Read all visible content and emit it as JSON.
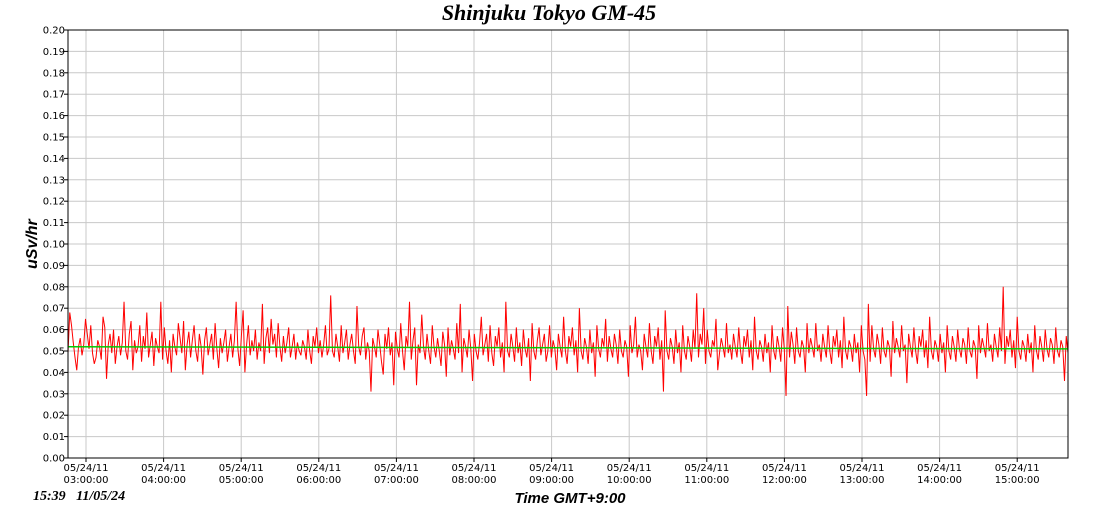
{
  "chart_data": {
    "type": "line",
    "title": "Shinjuku Tokyo GM-45",
    "ylabel": "uSv/hr",
    "xlabel": "Time GMT+9:00",
    "timestamp": "15:39   11/05/24",
    "ylim": [
      0,
      0.2
    ],
    "y_ticks": [
      "0.00",
      "0.01",
      "0.02",
      "0.03",
      "0.04",
      "0.05",
      "0.06",
      "0.07",
      "0.08",
      "0.09",
      "0.10",
      "0.11",
      "0.12",
      "0.13",
      "0.14",
      "0.15",
      "0.16",
      "0.17",
      "0.18",
      "0.19",
      "0.20"
    ],
    "x_ticks": [
      {
        "date": "05/24/11",
        "time": "03:00:00"
      },
      {
        "date": "05/24/11",
        "time": "04:00:00"
      },
      {
        "date": "05/24/11",
        "time": "05:00:00"
      },
      {
        "date": "05/24/11",
        "time": "06:00:00"
      },
      {
        "date": "05/24/11",
        "time": "07:00:00"
      },
      {
        "date": "05/24/11",
        "time": "08:00:00"
      },
      {
        "date": "05/24/11",
        "time": "09:00:00"
      },
      {
        "date": "05/24/11",
        "time": "10:00:00"
      },
      {
        "date": "05/24/11",
        "time": "11:00:00"
      },
      {
        "date": "05/24/11",
        "time": "12:00:00"
      },
      {
        "date": "05/24/11",
        "time": "13:00:00"
      },
      {
        "date": "05/24/11",
        "time": "14:00:00"
      },
      {
        "date": "05/24/11",
        "time": "15:00:00"
      }
    ],
    "grid": true,
    "series": [
      {
        "color": "#ff0000",
        "values": [
          0.049,
          0.068,
          0.062,
          0.054,
          0.047,
          0.041,
          0.052,
          0.056,
          0.048,
          0.053,
          0.065,
          0.058,
          0.051,
          0.062,
          0.049,
          0.044,
          0.047,
          0.055,
          0.052,
          0.046,
          0.066,
          0.061,
          0.037,
          0.053,
          0.058,
          0.049,
          0.06,
          0.044,
          0.052,
          0.057,
          0.048,
          0.054,
          0.073,
          0.05,
          0.046,
          0.058,
          0.064,
          0.041,
          0.055,
          0.049,
          0.052,
          0.062,
          0.045,
          0.057,
          0.051,
          0.068,
          0.047,
          0.053,
          0.059,
          0.043,
          0.056,
          0.052,
          0.049,
          0.073,
          0.046,
          0.061,
          0.05,
          0.044,
          0.055,
          0.04,
          0.058,
          0.052,
          0.048,
          0.063,
          0.056,
          0.049,
          0.064,
          0.041,
          0.053,
          0.059,
          0.047,
          0.055,
          0.062,
          0.05,
          0.045,
          0.058,
          0.052,
          0.039,
          0.055,
          0.061,
          0.048,
          0.053,
          0.058,
          0.046,
          0.063,
          0.051,
          0.042,
          0.056,
          0.049,
          0.054,
          0.06,
          0.045,
          0.052,
          0.058,
          0.047,
          0.055,
          0.073,
          0.051,
          0.043,
          0.057,
          0.069,
          0.04,
          0.053,
          0.062,
          0.048,
          0.055,
          0.05,
          0.06,
          0.046,
          0.054,
          0.05,
          0.072,
          0.044,
          0.056,
          0.061,
          0.049,
          0.065,
          0.053,
          0.058,
          0.047,
          0.063,
          0.052,
          0.045,
          0.057,
          0.049,
          0.054,
          0.061,
          0.047,
          0.052,
          0.058,
          0.046,
          0.054,
          0.05,
          0.048,
          0.055,
          0.052,
          0.046,
          0.06,
          0.05,
          0.044,
          0.057,
          0.052,
          0.061,
          0.049,
          0.055,
          0.047,
          0.053,
          0.062,
          0.048,
          0.051,
          0.076,
          0.05,
          0.047,
          0.058,
          0.052,
          0.045,
          0.062,
          0.049,
          0.054,
          0.06,
          0.046,
          0.053,
          0.058,
          0.05,
          0.044,
          0.071,
          0.052,
          0.048,
          0.057,
          0.061,
          0.046,
          0.054,
          0.05,
          0.031,
          0.056,
          0.052,
          0.047,
          0.06,
          0.053,
          0.045,
          0.039,
          0.058,
          0.051,
          0.061,
          0.048,
          0.054,
          0.034,
          0.059,
          0.051,
          0.047,
          0.063,
          0.05,
          0.041,
          0.057,
          0.052,
          0.073,
          0.046,
          0.055,
          0.061,
          0.034,
          0.053,
          0.049,
          0.067,
          0.052,
          0.046,
          0.058,
          0.05,
          0.044,
          0.062,
          0.052,
          0.047,
          0.056,
          0.05,
          0.043,
          0.059,
          0.053,
          0.038,
          0.061,
          0.048,
          0.055,
          0.051,
          0.046,
          0.063,
          0.049,
          0.072,
          0.04,
          0.056,
          0.052,
          0.047,
          0.06,
          0.051,
          0.036,
          0.058,
          0.05,
          0.046,
          0.054,
          0.066,
          0.048,
          0.053,
          0.058,
          0.045,
          0.062,
          0.049,
          0.043,
          0.057,
          0.052,
          0.061,
          0.047,
          0.054,
          0.04,
          0.073,
          0.05,
          0.047,
          0.058,
          0.052,
          0.045,
          0.061,
          0.049,
          0.054,
          0.043,
          0.06,
          0.051,
          0.047,
          0.056,
          0.036,
          0.063,
          0.05,
          0.046,
          0.055,
          0.061,
          0.048,
          0.053,
          0.058,
          0.045,
          0.05,
          0.062,
          0.047,
          0.055,
          0.051,
          0.041,
          0.058,
          0.052,
          0.047,
          0.066,
          0.05,
          0.044,
          0.057,
          0.052,
          0.061,
          0.048,
          0.055,
          0.04,
          0.07,
          0.05,
          0.046,
          0.056,
          0.052,
          0.044,
          0.06,
          0.049,
          0.054,
          0.038,
          0.062,
          0.051,
          0.047,
          0.056,
          0.052,
          0.065,
          0.045,
          0.057,
          0.051,
          0.047,
          0.058,
          0.053,
          0.044,
          0.06,
          0.05,
          0.047,
          0.055,
          0.052,
          0.038,
          0.062,
          0.049,
          0.053,
          0.066,
          0.047,
          0.053,
          0.05,
          0.041,
          0.058,
          0.052,
          0.047,
          0.063,
          0.05,
          0.044,
          0.057,
          0.052,
          0.061,
          0.046,
          0.055,
          0.031,
          0.069,
          0.05,
          0.046,
          0.056,
          0.052,
          0.044,
          0.06,
          0.049,
          0.054,
          0.04,
          0.062,
          0.05,
          0.046,
          0.057,
          0.052,
          0.045,
          0.06,
          0.051,
          0.077,
          0.047,
          0.058,
          0.053,
          0.07,
          0.044,
          0.06,
          0.05,
          0.047,
          0.055,
          0.052,
          0.065,
          0.041,
          0.049,
          0.056,
          0.052,
          0.047,
          0.063,
          0.049,
          0.053,
          0.046,
          0.058,
          0.052,
          0.047,
          0.061,
          0.05,
          0.044,
          0.057,
          0.052,
          0.06,
          0.047,
          0.055,
          0.041,
          0.066,
          0.05,
          0.046,
          0.055,
          0.052,
          0.045,
          0.058,
          0.049,
          0.054,
          0.04,
          0.062,
          0.05,
          0.046,
          0.057,
          0.052,
          0.045,
          0.061,
          0.051,
          0.029,
          0.071,
          0.047,
          0.059,
          0.053,
          0.044,
          0.061,
          0.05,
          0.047,
          0.055,
          0.052,
          0.04,
          0.063,
          0.049,
          0.056,
          0.052,
          0.047,
          0.063,
          0.05,
          0.053,
          0.045,
          0.058,
          0.052,
          0.047,
          0.062,
          0.05,
          0.044,
          0.057,
          0.052,
          0.06,
          0.047,
          0.055,
          0.042,
          0.066,
          0.05,
          0.046,
          0.055,
          0.052,
          0.045,
          0.058,
          0.049,
          0.054,
          0.04,
          0.062,
          0.05,
          0.046,
          0.029,
          0.072,
          0.045,
          0.062,
          0.051,
          0.047,
          0.058,
          0.053,
          0.044,
          0.061,
          0.05,
          0.047,
          0.055,
          0.052,
          0.038,
          0.064,
          0.049,
          0.056,
          0.052,
          0.047,
          0.062,
          0.05,
          0.053,
          0.035,
          0.058,
          0.052,
          0.047,
          0.061,
          0.05,
          0.044,
          0.057,
          0.052,
          0.06,
          0.047,
          0.055,
          0.042,
          0.066,
          0.05,
          0.046,
          0.055,
          0.052,
          0.045,
          0.058,
          0.049,
          0.054,
          0.04,
          0.062,
          0.05,
          0.046,
          0.057,
          0.052,
          0.045,
          0.06,
          0.051,
          0.047,
          0.056,
          0.053,
          0.044,
          0.061,
          0.05,
          0.047,
          0.055,
          0.052,
          0.037,
          0.062,
          0.049,
          0.056,
          0.052,
          0.047,
          0.063,
          0.05,
          0.053,
          0.045,
          0.058,
          0.052,
          0.047,
          0.061,
          0.05,
          0.08,
          0.044,
          0.057,
          0.052,
          0.06,
          0.047,
          0.055,
          0.042,
          0.066,
          0.05,
          0.046,
          0.055,
          0.052,
          0.045,
          0.058,
          0.049,
          0.054,
          0.04,
          0.062,
          0.05,
          0.046,
          0.057,
          0.052,
          0.045,
          0.06,
          0.051,
          0.047,
          0.056,
          0.053,
          0.044,
          0.061,
          0.05,
          0.047,
          0.055,
          0.052,
          0.036,
          0.057,
          0.049
        ]
      },
      {
        "color": "#00cc00",
        "values": [
          0.052,
          0.051
        ]
      }
    ]
  }
}
